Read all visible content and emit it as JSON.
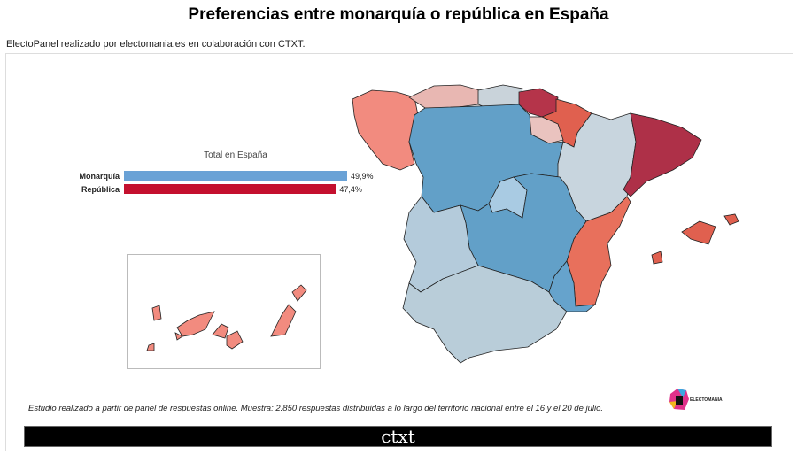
{
  "title": "Preferencias entre monarquía o república en España",
  "subtitle": "ElectoPanel realizado por electomania.es en colaboración con CTXT.",
  "chart_data": {
    "type": "bar",
    "title": "Total en España",
    "categories": [
      "Monarquía",
      "República"
    ],
    "values": [
      49.9,
      47.4
    ],
    "value_labels": [
      "49,9%",
      "47,4%"
    ],
    "colors": [
      "#6aa2d6",
      "#c4102e"
    ],
    "map": {
      "type": "choropleth",
      "regions": [
        {
          "name": "Galicia",
          "color": "#f28b7f"
        },
        {
          "name": "Asturias",
          "color": "#e8b7b2"
        },
        {
          "name": "Cantabria",
          "color": "#c9d3da"
        },
        {
          "name": "País Vasco",
          "color": "#b5344a"
        },
        {
          "name": "Navarra",
          "color": "#e0604f"
        },
        {
          "name": "La Rioja",
          "color": "#eac3bf"
        },
        {
          "name": "Castilla y León",
          "color": "#62a0c8"
        },
        {
          "name": "Aragón",
          "color": "#c8d5de"
        },
        {
          "name": "Cataluña",
          "color": "#ae3048"
        },
        {
          "name": "Madrid",
          "color": "#a9cbe3"
        },
        {
          "name": "Castilla-La Mancha",
          "color": "#62a0c8"
        },
        {
          "name": "Comunidad Valenciana",
          "color": "#e8705c"
        },
        {
          "name": "Extremadura",
          "color": "#b4cbdb"
        },
        {
          "name": "Andalucía",
          "color": "#b9cdd9"
        },
        {
          "name": "Murcia",
          "color": "#66a3cc"
        },
        {
          "name": "Baleares",
          "color": "#e0604f"
        },
        {
          "name": "Canarias",
          "color": "#f28b7f"
        }
      ]
    }
  },
  "note": "Estudio realizado a partir de panel de respuestas online. Muestra: 2.850 respuestas distribuidas a lo largo del territorio nacional entre el 16 y el 20 de julio.",
  "logo": {
    "electomania": "ELECTOMANIA",
    "ctxt": "ctxt"
  }
}
